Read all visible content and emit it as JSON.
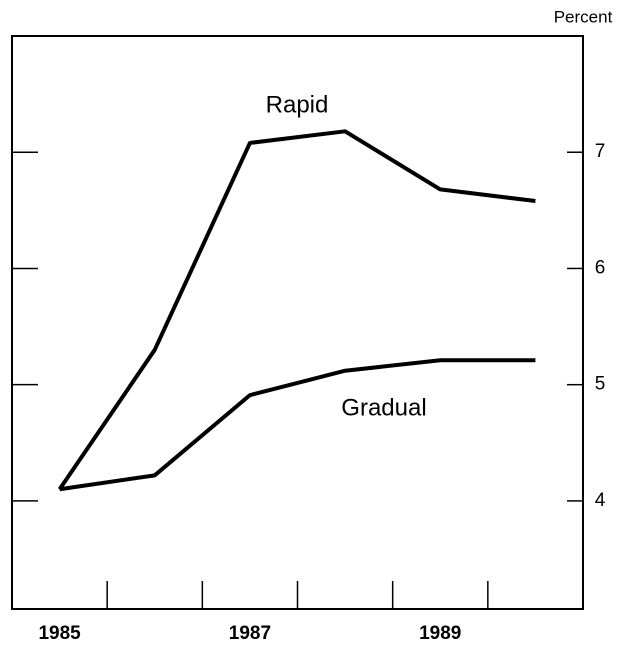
{
  "chart_data": {
    "type": "line",
    "y_axis_label": "Percent",
    "categories": [
      "1985",
      null,
      "1987",
      null,
      "1989",
      null
    ],
    "series": [
      {
        "name": "Rapid",
        "color": "#000000",
        "values": [
          4.1,
          5.3,
          7.08,
          7.18,
          6.68,
          6.58
        ]
      },
      {
        "name": "Gradual",
        "color": "#000000",
        "values": [
          4.1,
          4.22,
          4.91,
          5.12,
          5.21,
          5.21
        ]
      }
    ],
    "ylim": [
      3.07,
      8
    ],
    "yticks": [
      4,
      5,
      6,
      7
    ],
    "grid": false
  }
}
